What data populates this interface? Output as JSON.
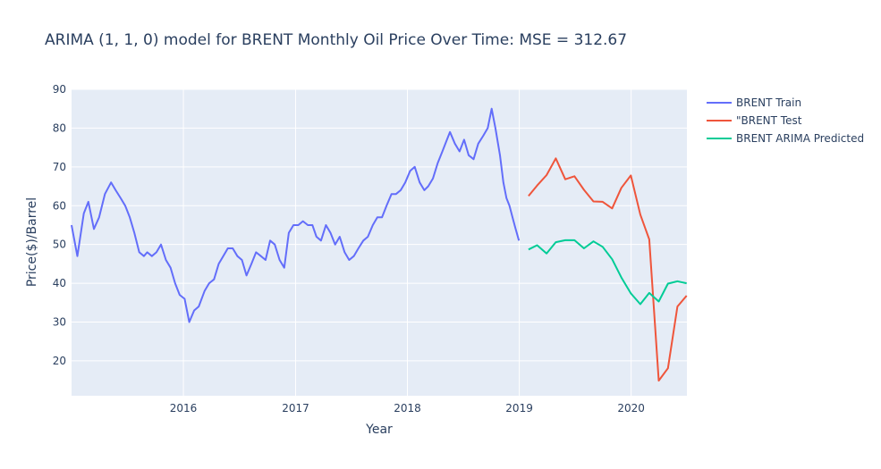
{
  "chart_data": {
    "type": "line",
    "title": "ARIMA  (1, 1, 0) model for BRENT Monthly Oil Price Over Time: MSE = 312.67",
    "xlabel": "Year",
    "ylabel": "Price($)/Barrel",
    "xlim": [
      "2015-01-01",
      "2020-07-01"
    ],
    "ylim": [
      11,
      90
    ],
    "x_ticks": [
      "2016",
      "2017",
      "2018",
      "2019",
      "2020"
    ],
    "y_ticks": [
      20,
      30,
      40,
      50,
      60,
      70,
      80,
      90
    ],
    "grid": true,
    "legend_position": "right",
    "series": [
      {
        "name": "BRENT Train",
        "color": "#636efa",
        "x": [
          "2015-01-01",
          "2015-01-20",
          "2015-02-10",
          "2015-02-25",
          "2015-03-15",
          "2015-04-01",
          "2015-04-20",
          "2015-05-10",
          "2015-05-25",
          "2015-06-10",
          "2015-06-25",
          "2015-07-10",
          "2015-07-25",
          "2015-08-10",
          "2015-08-25",
          "2015-09-05",
          "2015-09-20",
          "2015-10-05",
          "2015-10-20",
          "2015-11-05",
          "2015-11-20",
          "2015-12-05",
          "2015-12-20",
          "2016-01-05",
          "2016-01-20",
          "2016-02-05",
          "2016-02-20",
          "2016-03-10",
          "2016-03-25",
          "2016-04-10",
          "2016-04-25",
          "2016-05-10",
          "2016-05-25",
          "2016-06-10",
          "2016-06-25",
          "2016-07-10",
          "2016-07-25",
          "2016-08-10",
          "2016-08-25",
          "2016-09-10",
          "2016-09-25",
          "2016-10-10",
          "2016-10-25",
          "2016-11-10",
          "2016-11-25",
          "2016-12-10",
          "2016-12-25",
          "2017-01-10",
          "2017-01-25",
          "2017-02-10",
          "2017-02-25",
          "2017-03-10",
          "2017-03-25",
          "2017-04-10",
          "2017-04-25",
          "2017-05-10",
          "2017-05-25",
          "2017-06-10",
          "2017-06-25",
          "2017-07-10",
          "2017-07-25",
          "2017-08-10",
          "2017-08-25",
          "2017-09-10",
          "2017-09-25",
          "2017-10-10",
          "2017-10-25",
          "2017-11-10",
          "2017-11-25",
          "2017-12-10",
          "2017-12-25",
          "2018-01-10",
          "2018-01-25",
          "2018-02-10",
          "2018-02-25",
          "2018-03-10",
          "2018-03-25",
          "2018-04-10",
          "2018-04-25",
          "2018-05-10",
          "2018-05-20",
          "2018-06-05",
          "2018-06-20",
          "2018-07-05",
          "2018-07-20",
          "2018-08-05",
          "2018-08-20",
          "2018-09-05",
          "2018-09-20",
          "2018-10-03",
          "2018-10-15",
          "2018-10-30",
          "2018-11-10",
          "2018-11-20",
          "2018-11-30",
          "2018-12-10",
          "2018-12-20",
          "2018-12-31"
        ],
        "y": [
          55,
          47,
          58,
          61,
          54,
          57,
          63,
          66,
          64,
          62,
          60,
          57,
          53,
          48,
          47,
          48,
          47,
          48,
          50,
          46,
          44,
          40,
          37,
          36,
          30,
          33,
          34,
          38,
          40,
          41,
          45,
          47,
          49,
          49,
          47,
          46,
          42,
          45,
          48,
          47,
          46,
          51,
          50,
          46,
          44,
          53,
          55,
          55,
          56,
          55,
          55,
          52,
          51,
          55,
          53,
          50,
          52,
          48,
          46,
          47,
          49,
          51,
          52,
          55,
          57,
          57,
          60,
          63,
          63,
          64,
          66,
          69,
          70,
          66,
          64,
          65,
          67,
          71,
          74,
          77,
          79,
          76,
          74,
          77,
          73,
          72,
          76,
          78,
          80,
          85,
          80,
          73,
          66,
          62,
          60,
          57,
          54,
          51
        ]
      },
      {
        "name": "\"BRENT Test",
        "color": "#ef553b",
        "x": [
          "2019-01-31",
          "2019-02-28",
          "2019-03-31",
          "2019-04-30",
          "2019-05-31",
          "2019-06-30",
          "2019-07-31",
          "2019-08-31",
          "2019-09-30",
          "2019-10-31",
          "2019-11-30",
          "2019-12-31",
          "2020-01-31",
          "2020-02-29",
          "2020-03-31",
          "2020-04-30",
          "2020-05-31",
          "2020-06-30"
        ],
        "y": [
          62.5,
          65.2,
          67.9,
          72.2,
          66.8,
          67.6,
          64.1,
          61.1,
          61.0,
          59.3,
          64.6,
          67.8,
          57.7,
          51.3,
          14.9,
          18.1,
          34.0,
          36.8
        ]
      },
      {
        "name": "BRENT ARIMA Predicted",
        "color": "#00cc96",
        "x": [
          "2019-01-31",
          "2019-02-28",
          "2019-03-31",
          "2019-04-30",
          "2019-05-31",
          "2019-06-30",
          "2019-07-31",
          "2019-08-31",
          "2019-09-30",
          "2019-10-31",
          "2019-11-30",
          "2019-12-31",
          "2020-01-31",
          "2020-02-29",
          "2020-03-31",
          "2020-04-30",
          "2020-05-31",
          "2020-06-30"
        ],
        "y": [
          48.7,
          49.8,
          47.7,
          50.6,
          51.1,
          51.1,
          49.0,
          50.8,
          49.4,
          46.2,
          41.5,
          37.4,
          34.6,
          37.5,
          35.3,
          39.9,
          40.5,
          40.0
        ]
      }
    ]
  }
}
